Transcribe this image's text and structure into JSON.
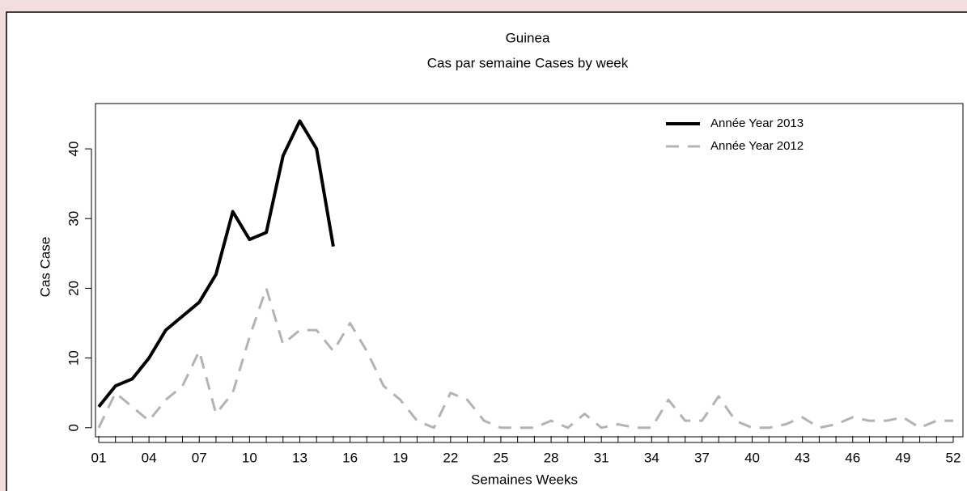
{
  "chart_data": {
    "type": "line",
    "title": "Guinea",
    "subtitle": "Cas par semaine Cases by week",
    "x_label": "Semaines Weeks",
    "y_label": "Cas Case",
    "categories": [
      "01",
      null,
      null,
      "04",
      null,
      null,
      "07",
      null,
      null,
      "10",
      null,
      null,
      "13",
      null,
      null,
      "16",
      null,
      null,
      "19",
      null,
      null,
      "22",
      null,
      null,
      "25",
      null,
      null,
      "28",
      null,
      null,
      "31",
      null,
      null,
      "34",
      null,
      null,
      "37",
      null,
      null,
      "40",
      null,
      null,
      "43",
      null,
      null,
      "46",
      null,
      null,
      "49",
      null,
      null,
      "52"
    ],
    "series": [
      {
        "name": "Année Year 2013",
        "color": "#000000",
        "dash": false,
        "values": [
          3,
          6,
          7,
          10,
          14,
          16,
          18,
          22,
          31,
          27,
          28,
          39,
          44,
          40,
          26,
          null,
          null,
          null,
          null,
          null,
          null,
          null,
          null,
          null,
          null,
          null,
          null,
          null,
          null,
          null,
          null,
          null,
          null,
          null,
          null,
          null,
          null,
          null,
          null,
          null,
          null,
          null,
          null,
          null,
          null,
          null,
          null,
          null,
          null,
          null,
          null,
          null
        ]
      },
      {
        "name": "Année Year 2012",
        "color": "#b3b3b3",
        "dash": true,
        "values": [
          0,
          5,
          3,
          1,
          4,
          6,
          11,
          2,
          5,
          13,
          20,
          12,
          14,
          14,
          11,
          15,
          11,
          6,
          4,
          1,
          0,
          5,
          4,
          1,
          0,
          0,
          0,
          1,
          0,
          2,
          0,
          0.5,
          0,
          0,
          4,
          1,
          1,
          4.5,
          1,
          0,
          0,
          0.5,
          1.5,
          0,
          0.5,
          1.5,
          1,
          1,
          1.5,
          0,
          1,
          1
        ]
      }
    ],
    "ylim": [
      -1.3,
      46.5
    ],
    "yticks": [
      0,
      10,
      20,
      30,
      40
    ],
    "legend": "top-right",
    "grid": false
  }
}
